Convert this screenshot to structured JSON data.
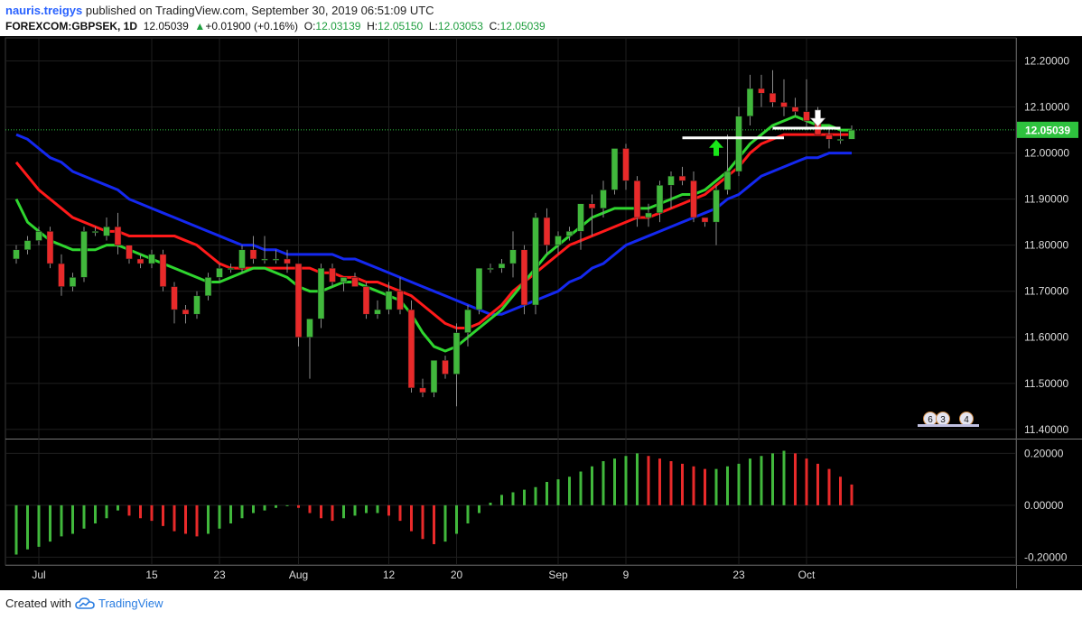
{
  "header": {
    "user": "nauris.treigys",
    "published": "published on TradingView.com, September 30, 2019 06:51:09 UTC"
  },
  "quote": {
    "symbol": "FOREXCOM:GBPSEK, 1D",
    "last": "12.05039",
    "change_arrow": "▲",
    "change": "+0.01900 (+0.16%)",
    "o_label": "O:",
    "o": "12.03139",
    "h_label": "H:",
    "h": "12.05150",
    "l_label": "L:",
    "l": "12.03053",
    "c_label": "C:",
    "c": "12.05039"
  },
  "footer": {
    "created_with": "Created with",
    "brand": "TradingView",
    "logo_icon": "tradingview-cloud-icon"
  },
  "colors": {
    "background": "#000000",
    "bull": "#41b83c",
    "bear": "#e82a2a",
    "ma_fast": "#2fd62f",
    "ma_mid": "#ff1a1a",
    "ma_slow": "#1428f0",
    "price_label": "#2ec23e"
  },
  "chart_data": {
    "type": "candlestick",
    "price_axis": {
      "range": [
        11.38,
        12.25
      ],
      "ticks": [
        "12.20000",
        "12.10000",
        "12.00000",
        "11.90000",
        "11.80000",
        "11.70000",
        "11.60000",
        "11.50000",
        "11.40000"
      ],
      "tick_values": [
        12.2,
        12.1,
        12.0,
        11.9,
        11.8,
        11.7,
        11.6,
        11.5,
        11.4
      ],
      "current_price": 12.05039,
      "current_price_label": "12.05039"
    },
    "osc_axis": {
      "range": [
        -0.23,
        0.25
      ],
      "ticks": [
        "0.20000",
        "0.00000",
        "-0.20000"
      ],
      "tick_values": [
        0.2,
        0.0,
        -0.2
      ]
    },
    "x_axis": {
      "labels": [
        {
          "text": "Jul",
          "bar": 2
        },
        {
          "text": "15",
          "bar": 12
        },
        {
          "text": "23",
          "bar": 18
        },
        {
          "text": "Aug",
          "bar": 25
        },
        {
          "text": "12",
          "bar": 33
        },
        {
          "text": "20",
          "bar": 39
        },
        {
          "text": "Sep",
          "bar": 48
        },
        {
          "text": "9",
          "bar": 54
        },
        {
          "text": "23",
          "bar": 64
        },
        {
          "text": "Oct",
          "bar": 70
        }
      ]
    },
    "candles": [
      [
        11.77,
        11.8,
        11.76,
        11.79
      ],
      [
        11.79,
        11.82,
        11.78,
        11.81
      ],
      [
        11.81,
        11.84,
        11.8,
        11.83
      ],
      [
        11.83,
        11.84,
        11.75,
        11.76
      ],
      [
        11.76,
        11.78,
        11.69,
        11.71
      ],
      [
        11.71,
        11.74,
        11.7,
        11.73
      ],
      [
        11.73,
        11.84,
        11.72,
        11.83
      ],
      [
        11.83,
        11.84,
        11.82,
        11.83
      ],
      [
        11.82,
        11.86,
        11.81,
        11.84
      ],
      [
        11.84,
        11.87,
        11.78,
        11.8
      ],
      [
        11.8,
        11.8,
        11.76,
        11.77
      ],
      [
        11.77,
        11.78,
        11.75,
        11.76
      ],
      [
        11.76,
        11.79,
        11.75,
        11.78
      ],
      [
        11.78,
        11.79,
        11.7,
        11.71
      ],
      [
        11.71,
        11.72,
        11.63,
        11.66
      ],
      [
        11.66,
        11.67,
        11.63,
        11.65
      ],
      [
        11.65,
        11.7,
        11.64,
        11.69
      ],
      [
        11.69,
        11.74,
        11.68,
        11.73
      ],
      [
        11.73,
        11.76,
        11.72,
        11.75
      ],
      [
        11.75,
        11.76,
        11.74,
        11.75
      ],
      [
        11.75,
        11.8,
        11.74,
        11.79
      ],
      [
        11.79,
        11.82,
        11.76,
        11.77
      ],
      [
        11.77,
        11.82,
        11.76,
        11.77
      ],
      [
        11.77,
        11.79,
        11.76,
        11.77
      ],
      [
        11.77,
        11.79,
        11.74,
        11.76
      ],
      [
        11.76,
        11.76,
        11.58,
        11.6
      ],
      [
        11.6,
        11.64,
        11.51,
        11.64
      ],
      [
        11.64,
        11.76,
        11.62,
        11.75
      ],
      [
        11.75,
        11.76,
        11.71,
        11.72
      ],
      [
        11.72,
        11.73,
        11.7,
        11.73
      ],
      [
        11.73,
        11.74,
        11.71,
        11.71
      ],
      [
        11.71,
        11.72,
        11.64,
        11.65
      ],
      [
        11.65,
        11.68,
        11.64,
        11.66
      ],
      [
        11.66,
        11.72,
        11.65,
        11.7
      ],
      [
        11.7,
        11.73,
        11.65,
        11.66
      ],
      [
        11.66,
        11.68,
        11.48,
        11.49
      ],
      [
        11.49,
        11.51,
        11.47,
        11.48
      ],
      [
        11.48,
        11.55,
        11.47,
        11.55
      ],
      [
        11.55,
        11.56,
        11.51,
        11.52
      ],
      [
        11.52,
        11.63,
        11.45,
        11.61
      ],
      [
        11.61,
        11.67,
        11.58,
        11.66
      ],
      [
        11.66,
        11.75,
        11.65,
        11.75
      ],
      [
        11.75,
        11.76,
        11.74,
        11.75
      ],
      [
        11.75,
        11.77,
        11.74,
        11.76
      ],
      [
        11.76,
        11.83,
        11.73,
        11.79
      ],
      [
        11.79,
        11.8,
        11.65,
        11.67
      ],
      [
        11.67,
        11.87,
        11.65,
        11.86
      ],
      [
        11.86,
        11.88,
        11.78,
        11.8
      ],
      [
        11.8,
        11.83,
        11.78,
        11.82
      ],
      [
        11.82,
        11.84,
        11.81,
        11.83
      ],
      [
        11.83,
        11.89,
        11.79,
        11.89
      ],
      [
        11.89,
        11.91,
        11.82,
        11.88
      ],
      [
        11.88,
        11.94,
        11.86,
        11.92
      ],
      [
        11.92,
        12.01,
        11.91,
        12.01
      ],
      [
        12.01,
        12.02,
        11.92,
        11.94
      ],
      [
        11.94,
        11.95,
        11.84,
        11.86
      ],
      [
        11.86,
        11.89,
        11.84,
        11.87
      ],
      [
        11.87,
        11.94,
        11.85,
        11.93
      ],
      [
        11.93,
        11.96,
        11.88,
        11.95
      ],
      [
        11.95,
        11.97,
        11.93,
        11.94
      ],
      [
        11.94,
        11.96,
        11.85,
        11.86
      ],
      [
        11.86,
        11.86,
        11.84,
        11.85
      ],
      [
        11.85,
        11.93,
        11.8,
        11.92
      ],
      [
        11.92,
        12.04,
        11.91,
        11.96
      ]
    ],
    "osc": [
      -0.19,
      -0.17,
      -0.16,
      -0.14,
      -0.12,
      -0.11,
      -0.09,
      -0.07,
      -0.05,
      -0.02,
      -0.04,
      -0.05,
      -0.06,
      -0.08,
      -0.1,
      -0.11,
      -0.12,
      -0.11,
      -0.09,
      -0.07,
      -0.05,
      -0.03,
      -0.02,
      -0.01,
      0.0,
      -0.01,
      -0.03,
      -0.05,
      -0.06,
      -0.05,
      -0.04,
      -0.03,
      -0.03,
      -0.04,
      -0.06,
      -0.1,
      -0.13,
      -0.15,
      -0.14,
      -0.11,
      -0.07,
      -0.03,
      0.01,
      0.04,
      0.05,
      0.06,
      0.07,
      0.09,
      0.1,
      0.11,
      0.13,
      0.15,
      0.17,
      0.18,
      0.19,
      0.2,
      0.19,
      0.18,
      0.17,
      0.16,
      0.15,
      0.14,
      0.14,
      0.15
    ],
    "ma_fast": [
      11.9,
      11.85,
      11.83,
      11.81,
      11.8,
      11.79,
      11.79,
      11.79,
      11.8,
      11.8,
      11.79,
      11.78,
      11.77,
      11.76,
      11.75,
      11.74,
      11.73,
      11.72,
      11.72,
      11.73,
      11.74,
      11.75,
      11.75,
      11.74,
      11.73,
      11.71,
      11.7,
      11.7,
      11.71,
      11.72,
      11.72,
      11.71,
      11.7,
      11.69,
      11.68,
      11.65,
      11.61,
      11.58,
      11.57,
      11.58,
      11.6,
      11.62,
      11.64,
      11.66,
      11.69,
      11.72,
      11.75,
      11.78,
      11.8,
      11.82,
      11.84,
      11.86,
      11.87,
      11.88,
      11.88,
      11.88,
      11.88,
      11.89,
      11.9,
      11.91,
      11.91,
      11.92,
      11.94,
      11.96
    ],
    "ma_mid": [
      11.98,
      11.95,
      11.92,
      11.9,
      11.88,
      11.86,
      11.85,
      11.84,
      11.83,
      11.83,
      11.82,
      11.82,
      11.82,
      11.82,
      11.82,
      11.81,
      11.8,
      11.78,
      11.76,
      11.75,
      11.75,
      11.75,
      11.75,
      11.75,
      11.75,
      11.75,
      11.75,
      11.74,
      11.74,
      11.73,
      11.73,
      11.72,
      11.72,
      11.71,
      11.7,
      11.69,
      11.67,
      11.65,
      11.63,
      11.62,
      11.62,
      11.63,
      11.65,
      11.67,
      11.7,
      11.72,
      11.74,
      11.76,
      11.78,
      11.8,
      11.81,
      11.82,
      11.83,
      11.84,
      11.85,
      11.86,
      11.86,
      11.87,
      11.88,
      11.89,
      11.9,
      11.91,
      11.93,
      11.95
    ],
    "ma_slow": [
      12.04,
      12.03,
      12.01,
      11.99,
      11.98,
      11.96,
      11.95,
      11.94,
      11.93,
      11.92,
      11.9,
      11.89,
      11.88,
      11.87,
      11.86,
      11.85,
      11.84,
      11.83,
      11.82,
      11.81,
      11.8,
      11.8,
      11.79,
      11.79,
      11.78,
      11.78,
      11.78,
      11.78,
      11.78,
      11.77,
      11.77,
      11.76,
      11.75,
      11.74,
      11.73,
      11.72,
      11.71,
      11.7,
      11.69,
      11.68,
      11.67,
      11.66,
      11.65,
      11.65,
      11.66,
      11.67,
      11.68,
      11.69,
      11.7,
      11.72,
      11.73,
      11.75,
      11.76,
      11.78,
      11.8,
      11.81,
      11.82,
      11.83,
      11.84,
      11.85,
      11.86,
      11.87,
      11.88,
      11.9
    ],
    "extra_bars": [
      [
        11.96,
        12.1,
        11.95,
        12.08
      ],
      [
        12.08,
        12.17,
        12.06,
        12.14
      ],
      [
        12.14,
        12.17,
        12.1,
        12.13
      ],
      [
        12.13,
        12.18,
        12.1,
        12.11
      ],
      [
        12.11,
        12.16,
        12.08,
        12.1
      ],
      [
        12.1,
        12.12,
        12.08,
        12.09
      ],
      [
        12.09,
        12.16,
        12.05,
        12.07
      ],
      [
        12.07,
        12.1,
        12.04,
        12.04
      ],
      [
        12.04,
        12.06,
        12.01,
        12.03
      ],
      [
        12.03,
        12.05,
        12.02,
        12.03
      ],
      [
        12.03,
        12.06,
        12.03,
        12.05
      ]
    ],
    "extra_osc": [
      0.16,
      0.18,
      0.19,
      0.2,
      0.21,
      0.2,
      0.18,
      0.16,
      0.14,
      0.11,
      0.08
    ],
    "extra_ma_fast": [
      11.99,
      12.02,
      12.04,
      12.06,
      12.07,
      12.08,
      12.07,
      12.06,
      12.06,
      12.05,
      12.05
    ],
    "extra_ma_mid": [
      11.97,
      12.0,
      12.02,
      12.03,
      12.04,
      12.04,
      12.04,
      12.04,
      12.04,
      12.04,
      12.04
    ],
    "extra_ma_slow": [
      11.91,
      11.93,
      11.95,
      11.96,
      11.97,
      11.98,
      11.99,
      11.99,
      12.0,
      12.0,
      12.0
    ],
    "annotations": {
      "up_arrow_bar": 62,
      "down_arrow_bar": 71,
      "resistance_1": {
        "from_bar": 59,
        "to_bar": 68,
        "price": 12.033
      },
      "resistance_2": {
        "from_bar": 67,
        "to_bar": 73,
        "price": 12.054
      },
      "events": [
        "6",
        "3",
        "4"
      ]
    }
  }
}
